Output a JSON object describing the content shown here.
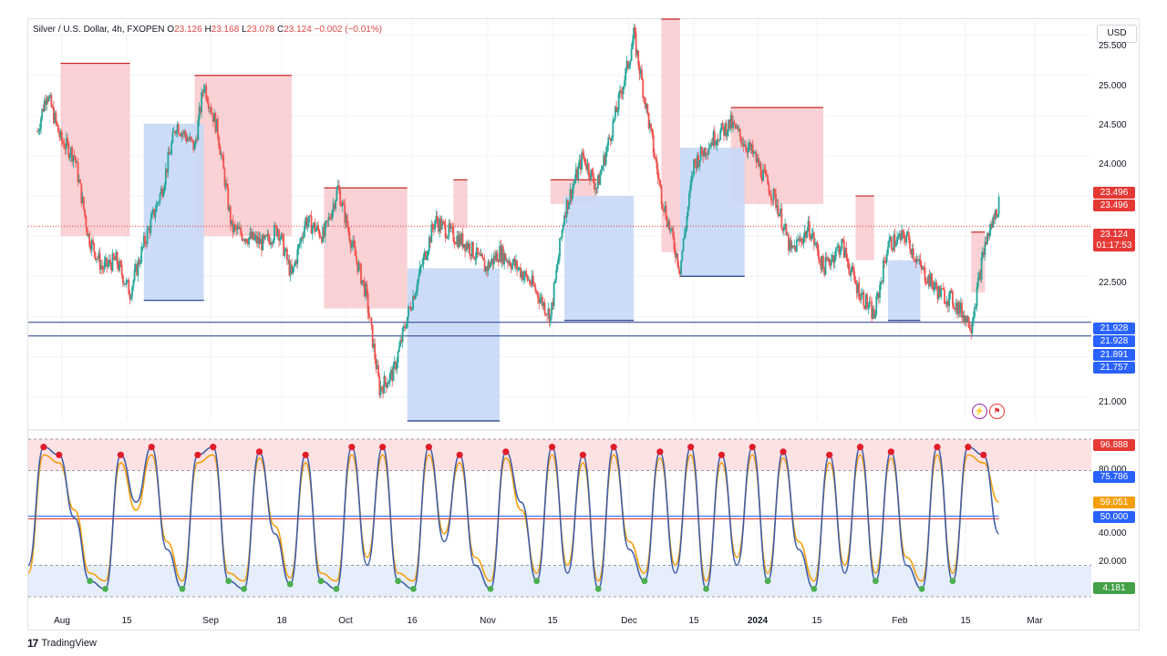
{
  "legend": {
    "symbol": "Silver / U.S. Dollar, 4h, FXOPEN",
    "open_label": "O",
    "open": "23.126",
    "high_label": "H",
    "high": "23.168",
    "low_label": "L",
    "low": "23.078",
    "close_label": "C",
    "close": "23.124",
    "change": "−0.002 (−0.01%)"
  },
  "currency_button": "USD",
  "branding": "TradingView",
  "colors": {
    "up": "#26a69a",
    "down": "#ef5350",
    "resistance_fill": "#f9c9cc",
    "support_fill": "#c7d8f7",
    "overbought_fill": "#fde2e4",
    "oversold_fill": "#e6eefc",
    "k_line": "#3f5ea6",
    "d_line": "#f59e0b"
  },
  "icons": [
    "flash-icon",
    "flag-icon"
  ],
  "chart_data": [
    {
      "type": "candlestick",
      "title": "Silver / U.S. Dollar, 4h, FXOPEN",
      "ylim": [
        20.7,
        25.7
      ],
      "y_ticks": [
        "25.500",
        "25.000",
        "24.500",
        "24.000",
        "22.500",
        "21.000"
      ],
      "x_ticks": [
        "Aug",
        "15",
        "Sep",
        "18",
        "Oct",
        "16",
        "Nov",
        "15",
        "Dec",
        "15",
        "2024",
        "15",
        "Feb",
        "15",
        "Mar"
      ],
      "price_path": {
        "dates": [
          "2023-07-25",
          "2023-07-27",
          "2023-07-30",
          "2023-08-02",
          "2023-08-05",
          "2023-08-08",
          "2023-08-11",
          "2023-08-14",
          "2023-08-17",
          "2023-08-21",
          "2023-08-24",
          "2023-08-28",
          "2023-08-30",
          "2023-09-02",
          "2023-09-05",
          "2023-09-08",
          "2023-09-12",
          "2023-09-15",
          "2023-09-18",
          "2023-09-21",
          "2023-09-25",
          "2023-09-28",
          "2023-10-01",
          "2023-10-04",
          "2023-10-07",
          "2023-10-10",
          "2023-10-13",
          "2023-10-16",
          "2023-10-19",
          "2023-10-23",
          "2023-10-26",
          "2023-10-30",
          "2023-11-02",
          "2023-11-06",
          "2023-11-09",
          "2023-11-13",
          "2023-11-16",
          "2023-11-20",
          "2023-11-23",
          "2023-11-27",
          "2023-11-30",
          "2023-12-01",
          "2023-12-04",
          "2023-12-07",
          "2023-12-11",
          "2023-12-14",
          "2023-12-18",
          "2023-12-22",
          "2023-12-27",
          "2024-01-01",
          "2024-01-04",
          "2024-01-08",
          "2024-01-11",
          "2024-01-15",
          "2024-01-18",
          "2024-01-22",
          "2024-01-25",
          "2024-01-29",
          "2024-02-01",
          "2024-02-05",
          "2024-02-08",
          "2024-02-12",
          "2024-02-15",
          "2024-02-18"
        ],
        "close": [
          24.3,
          24.8,
          24.2,
          24.0,
          23.0,
          22.6,
          22.7,
          22.3,
          22.9,
          23.6,
          24.4,
          24.1,
          24.9,
          24.3,
          23.1,
          23.0,
          22.9,
          23.1,
          22.5,
          23.2,
          23.0,
          23.6,
          22.9,
          22.3,
          21.1,
          21.3,
          22.0,
          22.6,
          23.2,
          23.0,
          22.9,
          22.6,
          22.8,
          22.6,
          22.4,
          22.0,
          23.3,
          24.0,
          23.6,
          24.5,
          25.2,
          25.5,
          24.5,
          23.5,
          22.6,
          23.9,
          24.2,
          24.4,
          24.0,
          23.4,
          22.8,
          23.1,
          22.6,
          22.9,
          22.4,
          22.0,
          22.9,
          23.0,
          22.6,
          22.3,
          22.2,
          21.9,
          22.9,
          23.4
        ],
        "high": [
          24.6,
          25.1,
          24.5,
          24.3,
          23.4,
          22.9,
          23.0,
          22.7,
          23.3,
          24.0,
          24.7,
          24.4,
          25.1,
          24.6,
          23.5,
          23.3,
          23.2,
          23.5,
          22.9,
          23.6,
          23.4,
          23.8,
          23.2,
          22.6,
          21.5,
          21.7,
          22.3,
          22.9,
          23.5,
          23.3,
          23.2,
          22.9,
          23.1,
          22.9,
          22.7,
          22.4,
          23.6,
          24.3,
          23.9,
          24.8,
          25.5,
          25.7,
          24.9,
          23.9,
          22.9,
          24.2,
          24.5,
          24.7,
          24.3,
          23.7,
          23.1,
          23.4,
          22.9,
          23.2,
          22.7,
          22.3,
          23.2,
          23.3,
          22.9,
          22.6,
          22.5,
          22.2,
          23.2,
          23.5
        ],
        "low": [
          24.0,
          24.4,
          23.8,
          23.6,
          22.6,
          22.3,
          22.3,
          22.0,
          22.5,
          23.2,
          24.1,
          23.7,
          24.5,
          23.9,
          22.8,
          22.6,
          22.5,
          22.8,
          22.2,
          22.8,
          22.7,
          23.2,
          22.5,
          21.9,
          20.8,
          20.9,
          21.6,
          22.3,
          22.8,
          22.7,
          22.6,
          22.3,
          22.5,
          22.3,
          22.1,
          21.8,
          23.0,
          23.6,
          23.3,
          24.2,
          24.9,
          25.1,
          24.1,
          23.1,
          22.3,
          23.5,
          23.9,
          24.1,
          23.6,
          23.0,
          22.5,
          22.8,
          22.3,
          22.6,
          22.1,
          21.7,
          22.6,
          22.7,
          22.3,
          22.0,
          21.9,
          21.8,
          22.6,
          23.0
        ]
      },
      "resistance_zones": [
        {
          "from": "2023-07-30",
          "to": "2023-08-14",
          "top": 25.15,
          "bottom": 23.0
        },
        {
          "from": "2023-08-28",
          "to": "2023-09-18",
          "top": 25.0,
          "bottom": 23.0
        },
        {
          "from": "2023-09-25",
          "to": "2023-10-13",
          "top": 23.6,
          "bottom": 22.1
        },
        {
          "from": "2023-10-23",
          "to": "2023-10-26",
          "top": 23.7,
          "bottom": 23.1
        },
        {
          "from": "2023-11-13",
          "to": "2023-11-23",
          "top": 23.7,
          "bottom": 23.4
        },
        {
          "from": "2023-12-07",
          "to": "2023-12-11",
          "top": 25.7,
          "bottom": 22.8
        },
        {
          "from": "2023-12-22",
          "to": "2024-01-11",
          "top": 24.6,
          "bottom": 23.4
        },
        {
          "from": "2024-01-18",
          "to": "2024-01-22",
          "top": 23.5,
          "bottom": 22.7
        },
        {
          "from": "2024-02-12",
          "to": "2024-02-15",
          "top": 23.05,
          "bottom": 22.3
        }
      ],
      "support_zones": [
        {
          "from": "2023-08-17",
          "to": "2023-08-30",
          "top": 24.4,
          "bottom": 22.2
        },
        {
          "from": "2023-10-13",
          "to": "2023-11-02",
          "top": 22.6,
          "bottom": 20.7
        },
        {
          "from": "2023-11-16",
          "to": "2023-12-01",
          "top": 23.5,
          "bottom": 21.95
        },
        {
          "from": "2023-12-11",
          "to": "2023-12-25",
          "top": 24.1,
          "bottom": 22.5
        },
        {
          "from": "2024-01-25",
          "to": "2024-02-01",
          "top": 22.7,
          "bottom": 21.95
        }
      ],
      "horizontal_levels": [
        21.928,
        21.757
      ],
      "current_price": {
        "value": "23.124",
        "countdown": "01:17:53"
      },
      "price_labels": [
        "23.496",
        "23.496",
        "21.928",
        "21.928",
        "21.891",
        "21.757"
      ]
    },
    {
      "type": "line",
      "title": "",
      "ylim": [
        0,
        100
      ],
      "y_ticks": [
        "80.000",
        "40.000",
        "20.000"
      ],
      "bands": {
        "overbought": [
          80,
          100
        ],
        "oversold": [
          0,
          20
        ],
        "mid": 50
      },
      "series": [
        {
          "values": [
            20,
            95,
            90,
            50,
            10,
            5,
            90,
            60,
            95,
            30,
            5,
            90,
            95,
            10,
            5,
            92,
            40,
            8,
            90,
            10,
            5,
            95,
            20,
            95,
            10,
            5,
            95,
            35,
            90,
            20,
            5,
            92,
            60,
            10,
            95,
            15,
            90,
            5,
            95,
            30,
            10,
            92,
            15,
            95,
            5,
            90,
            20,
            95,
            10,
            92,
            30,
            5,
            90,
            15,
            95,
            10,
            92,
            20,
            5,
            95,
            10,
            95,
            90,
            40
          ]
        },
        {
          "values": [
            15,
            90,
            85,
            55,
            15,
            10,
            85,
            55,
            90,
            35,
            10,
            85,
            90,
            15,
            10,
            88,
            45,
            12,
            85,
            15,
            10,
            90,
            25,
            90,
            15,
            10,
            90,
            40,
            85,
            25,
            10,
            88,
            55,
            15,
            90,
            20,
            85,
            10,
            90,
            35,
            15,
            88,
            20,
            90,
            10,
            85,
            25,
            90,
            15,
            88,
            35,
            10,
            85,
            20,
            90,
            15,
            88,
            25,
            10,
            90,
            15,
            90,
            85,
            60
          ]
        }
      ],
      "value_labels": [
        "96.888",
        "75.786",
        "59.051",
        "50.000",
        "4.181"
      ]
    }
  ]
}
